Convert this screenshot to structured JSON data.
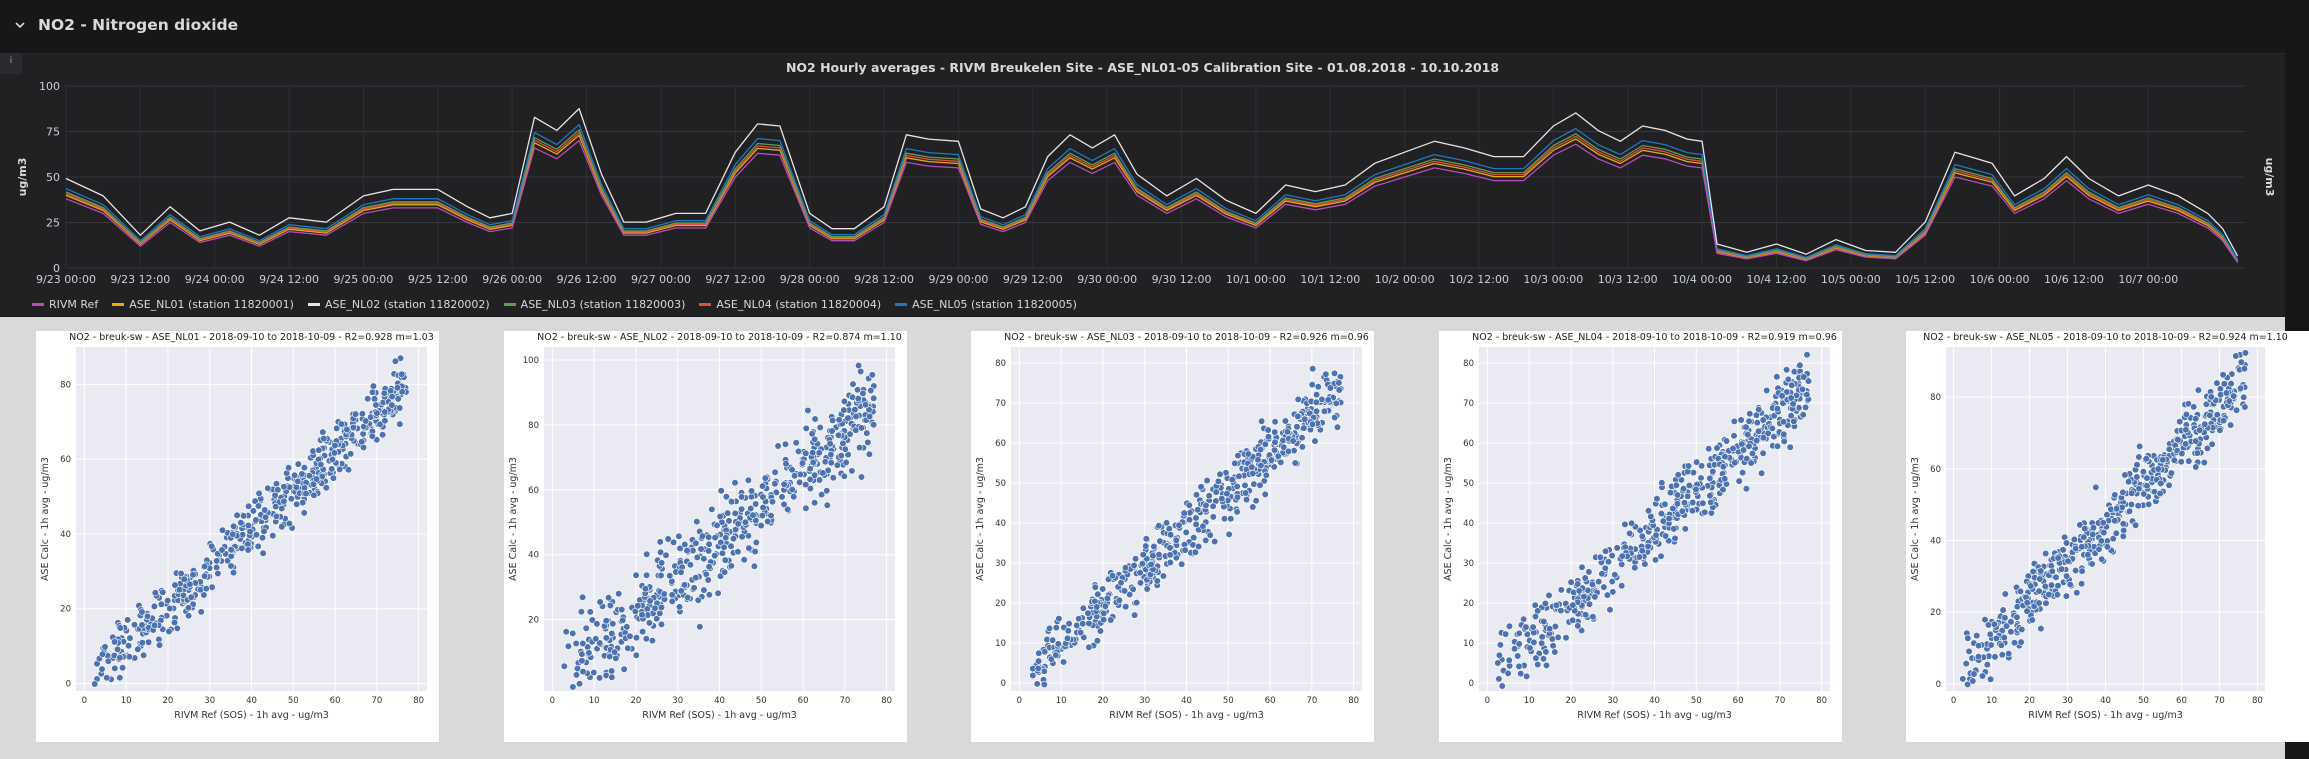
{
  "row": {
    "title": "NO2 - Nitrogen dioxide"
  },
  "panel": {
    "info_label": "i",
    "title": "NO2 Hourly averages - RIVM Breukelen Site - ASE_NL01-05 Calibration Site - 01.08.2018 - 10.10.2018",
    "legend": [
      {
        "label": "RIVM Ref",
        "color": "#b84cb9"
      },
      {
        "label": "ASE_NL01 (station 11820001)",
        "color": "#e5ac0e"
      },
      {
        "label": "ASE_NL02 (station 11820002)",
        "color": "#e6e6e6"
      },
      {
        "label": "ASE_NL03 (station 11820003)",
        "color": "#629e51"
      },
      {
        "label": "ASE_NL04 (station 11820004)",
        "color": "#e24d42"
      },
      {
        "label": "ASE_NL05 (station 11820005)",
        "color": "#1f78c1"
      }
    ]
  },
  "chart_data": [
    {
      "type": "line",
      "title": "NO2 Hourly averages - RIVM Breukelen Site - ASE_NL01-05 Calibration Site - 01.08.2018 - 10.10.2018",
      "ylabel": "ug/m3",
      "ylabel_right": "ug/m3",
      "ylim": [
        0,
        100
      ],
      "yticks": [
        0,
        25,
        50,
        75,
        100
      ],
      "xticks": [
        "9/23 00:00",
        "9/23 12:00",
        "9/24 00:00",
        "9/24 12:00",
        "9/25 00:00",
        "9/25 12:00",
        "9/26 00:00",
        "9/26 12:00",
        "9/27 00:00",
        "9/27 12:00",
        "9/28 00:00",
        "9/28 12:00",
        "9/29 00:00",
        "9/29 12:00",
        "9/30 00:00",
        "9/30 12:00",
        "10/1 00:00",
        "10/1 12:00",
        "10/2 00:00",
        "10/2 12:00",
        "10/3 00:00",
        "10/3 12:00",
        "10/4 00:00",
        "10/4 12:00",
        "10/5 00:00",
        "10/5 12:00",
        "10/6 00:00",
        "10/6 12:00",
        "10/7 00:00"
      ],
      "x_range_half_days": [
        0,
        29.3
      ],
      "grid": true,
      "legend_position": "bottom",
      "series": [
        {
          "name": "RIVM Ref",
          "color": "#b84cb9",
          "points": [
            [
              0,
              38
            ],
            [
              0.5,
              30
            ],
            [
              1,
              12
            ],
            [
              1.4,
              25
            ],
            [
              1.8,
              14
            ],
            [
              2.2,
              18
            ],
            [
              2.6,
              12
            ],
            [
              3,
              20
            ],
            [
              3.5,
              18
            ],
            [
              4,
              30
            ],
            [
              4.4,
              33
            ],
            [
              5,
              33
            ],
            [
              5.4,
              25
            ],
            [
              5.7,
              20
            ],
            [
              6,
              22
            ],
            [
              6.3,
              66
            ],
            [
              6.6,
              60
            ],
            [
              6.9,
              70
            ],
            [
              7.2,
              40
            ],
            [
              7.5,
              18
            ],
            [
              7.8,
              18
            ],
            [
              8.2,
              22
            ],
            [
              8.6,
              22
            ],
            [
              9,
              50
            ],
            [
              9.3,
              63
            ],
            [
              9.6,
              62
            ],
            [
              10,
              22
            ],
            [
              10.3,
              15
            ],
            [
              10.6,
              15
            ],
            [
              11,
              25
            ],
            [
              11.3,
              58
            ],
            [
              11.6,
              56
            ],
            [
              12,
              55
            ],
            [
              12.3,
              24
            ],
            [
              12.6,
              20
            ],
            [
              12.9,
              25
            ],
            [
              13.2,
              48
            ],
            [
              13.5,
              58
            ],
            [
              13.8,
              52
            ],
            [
              14.1,
              58
            ],
            [
              14.4,
              40
            ],
            [
              14.8,
              30
            ],
            [
              15.2,
              38
            ],
            [
              15.6,
              28
            ],
            [
              16,
              22
            ],
            [
              16.4,
              35
            ],
            [
              16.8,
              32
            ],
            [
              17.2,
              35
            ],
            [
              17.6,
              45
            ],
            [
              18,
              50
            ],
            [
              18.4,
              55
            ],
            [
              18.8,
              52
            ],
            [
              19.2,
              48
            ],
            [
              19.6,
              48
            ],
            [
              20,
              62
            ],
            [
              20.3,
              68
            ],
            [
              20.6,
              60
            ],
            [
              20.9,
              55
            ],
            [
              21.2,
              62
            ],
            [
              21.5,
              60
            ],
            [
              21.8,
              56
            ],
            [
              22,
              55
            ],
            [
              22.2,
              8
            ],
            [
              22.6,
              5
            ],
            [
              23,
              8
            ],
            [
              23.4,
              4
            ],
            [
              23.8,
              10
            ],
            [
              24.2,
              6
            ],
            [
              24.6,
              5
            ],
            [
              25,
              18
            ],
            [
              25.4,
              50
            ],
            [
              25.6,
              48
            ],
            [
              25.9,
              45
            ],
            [
              26.2,
              30
            ],
            [
              26.6,
              38
            ],
            [
              26.9,
              48
            ],
            [
              27.2,
              38
            ],
            [
              27.6,
              30
            ],
            [
              28,
              35
            ],
            [
              28.4,
              30
            ],
            [
              28.8,
              22
            ],
            [
              29,
              15
            ],
            [
              29.2,
              3
            ]
          ]
        },
        {
          "name": "ASE_NL01 (station 11820001)",
          "color": "#e5ac0e",
          "offset": 2
        },
        {
          "name": "ASE_NL02 (station 11820002)",
          "color": "#e6e6e6",
          "offset": 12
        },
        {
          "name": "ASE_NL03 (station 11820003)",
          "color": "#629e51",
          "offset": 4
        },
        {
          "name": "ASE_NL04 (station 11820004)",
          "color": "#e24d42",
          "offset": 3
        },
        {
          "name": "ASE_NL05 (station 11820005)",
          "color": "#1f78c1",
          "offset": 6
        }
      ]
    },
    {
      "type": "scatter",
      "title": "NO2 - breuk-sw - ASE_NL01 - 2018-09-10 to 2018-10-09 - R2=0.928 m=1.03",
      "xlabel": "RIVM Ref (SOS) - 1h avg - ug/m3",
      "ylabel": "ASE Calc - 1h avg - ug/m3",
      "xlim": [
        -2,
        82
      ],
      "ylim": [
        -2,
        90
      ],
      "xticks": [
        0,
        10,
        20,
        30,
        40,
        50,
        60,
        70,
        80
      ],
      "yticks": [
        0,
        20,
        40,
        60,
        80
      ],
      "slope": 1.03,
      "spread": 4.0,
      "color": "#4c72b0"
    },
    {
      "type": "scatter",
      "title": "NO2 - breuk-sw - ASE_NL02 - 2018-09-10 to 2018-10-09 - R2=0.874 m=1.10",
      "xlabel": "RIVM Ref (SOS) - 1h avg - ug/m3",
      "ylabel": "ASE Calc - 1h avg - ug/m3",
      "xlim": [
        -2,
        82
      ],
      "ylim": [
        -2,
        104
      ],
      "xticks": [
        0,
        10,
        20,
        30,
        40,
        50,
        60,
        70,
        80
      ],
      "yticks": [
        20,
        40,
        60,
        80,
        100
      ],
      "slope": 1.1,
      "spread": 7.0,
      "color": "#4c72b0"
    },
    {
      "type": "scatter",
      "title": "NO2 - breuk-sw - ASE_NL03 - 2018-09-10 to 2018-10-09 - R2=0.926 m=0.96",
      "xlabel": "RIVM Ref (SOS) - 1h avg - ug/m3",
      "ylabel": "ASE Calc - 1h avg - ug/m3",
      "xlim": [
        -2,
        82
      ],
      "ylim": [
        -2,
        84
      ],
      "xticks": [
        0,
        10,
        20,
        30,
        40,
        50,
        60,
        70,
        80
      ],
      "yticks": [
        0,
        10,
        20,
        30,
        40,
        50,
        60,
        70,
        80
      ],
      "slope": 0.96,
      "spread": 3.8,
      "color": "#4c72b0"
    },
    {
      "type": "scatter",
      "title": "NO2 - breuk-sw - ASE_NL04 - 2018-09-10 to 2018-10-09 - R2=0.919 m=0.96",
      "xlabel": "RIVM Ref (SOS) - 1h avg - ug/m3",
      "ylabel": "ASE Calc - 1h avg - ug/m3",
      "xlim": [
        -2,
        82
      ],
      "ylim": [
        -2,
        84
      ],
      "xticks": [
        0,
        10,
        20,
        30,
        40,
        50,
        60,
        70,
        80
      ],
      "yticks": [
        0,
        10,
        20,
        30,
        40,
        50,
        60,
        70,
        80
      ],
      "slope": 0.96,
      "spread": 4.2,
      "color": "#4c72b0"
    },
    {
      "type": "scatter",
      "title": "NO2 - breuk-sw - ASE_NL05 - 2018-09-10 to 2018-10-09 - R2=0.924 m=1.10",
      "xlabel": "RIVM Ref (SOS) - 1h avg - ug/m3",
      "ylabel": "ASE Calc - 1h avg - ug/m3",
      "xlim": [
        -2,
        82
      ],
      "ylim": [
        -2,
        94
      ],
      "xticks": [
        0,
        10,
        20,
        30,
        40,
        50,
        60,
        70,
        80
      ],
      "yticks": [
        0,
        20,
        40,
        60,
        80
      ],
      "slope": 1.1,
      "spread": 4.4,
      "color": "#4c72b0"
    }
  ]
}
